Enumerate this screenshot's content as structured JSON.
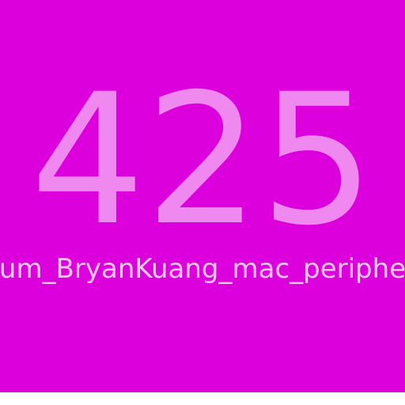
{
  "screen": {
    "big_number": "425",
    "caption": "um_BryanKuang_mac_periphe",
    "colors": {
      "background": "#dc00dc",
      "number": "#ef88ef",
      "caption": "#f6c7f6",
      "bottom_strip": "#ffffff"
    }
  }
}
